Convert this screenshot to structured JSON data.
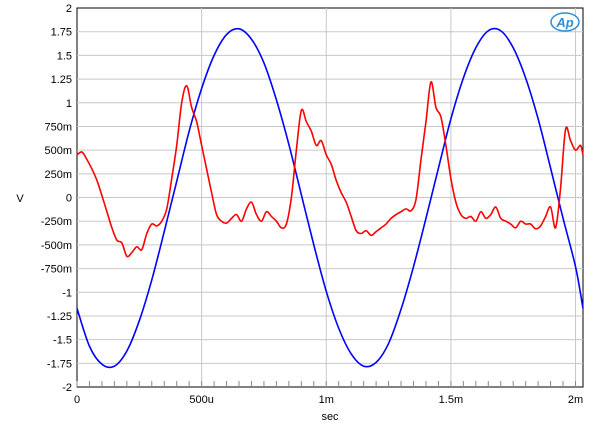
{
  "chart_data": {
    "type": "line",
    "xlabel": "sec",
    "ylabel": "V",
    "xlim": [
      0,
      0.00203
    ],
    "ylim": [
      -2,
      2
    ],
    "grid": true,
    "x_ticks": [
      {
        "value": 0,
        "label": "0"
      },
      {
        "value": 0.0005,
        "label": "500u"
      },
      {
        "value": 0.001,
        "label": "1m"
      },
      {
        "value": 0.0015,
        "label": "1.5m"
      },
      {
        "value": 0.002,
        "label": "2m"
      }
    ],
    "y_ticks": [
      {
        "value": 2,
        "label": "2"
      },
      {
        "value": 1.75,
        "label": "1.75"
      },
      {
        "value": 1.5,
        "label": "1.5"
      },
      {
        "value": 1.25,
        "label": "1.25"
      },
      {
        "value": 1,
        "label": "1"
      },
      {
        "value": 0.75,
        "label": "750m"
      },
      {
        "value": 0.5,
        "label": "500m"
      },
      {
        "value": 0.25,
        "label": "250m"
      },
      {
        "value": 0,
        "label": "0"
      },
      {
        "value": -0.25,
        "label": "-250m"
      },
      {
        "value": -0.5,
        "label": "-500m"
      },
      {
        "value": -0.75,
        "label": "-750m"
      },
      {
        "value": -1,
        "label": "-1"
      },
      {
        "value": -1.25,
        "label": "-1.25"
      },
      {
        "value": -1.5,
        "label": "-1.5"
      },
      {
        "value": -1.75,
        "label": "-1.75"
      },
      {
        "value": -2,
        "label": "-2"
      }
    ],
    "logo_text": "Ap",
    "series": [
      {
        "color": "#0000ff",
        "x": [
          0,
          5e-05,
          0.0001,
          0.00015,
          0.0002,
          0.00025,
          0.0003,
          0.00035,
          0.0004,
          0.00045,
          0.0005,
          0.00055,
          0.0006,
          0.00065,
          0.0007,
          0.00075,
          0.0008,
          0.00085,
          0.0009,
          0.00095,
          0.001,
          0.00105,
          0.0011,
          0.00115,
          0.0012,
          0.00125,
          0.0013,
          0.00135,
          0.0014,
          0.00145,
          0.0015,
          0.00155,
          0.0016,
          0.00165,
          0.0017,
          0.00175,
          0.0018,
          0.00185,
          0.0019,
          0.00195,
          0.002,
          0.00203
        ],
        "y": [
          -1.17,
          -1.57,
          -1.76,
          -1.78,
          -1.62,
          -1.3,
          -0.87,
          -0.36,
          0.17,
          0.7,
          1.15,
          1.5,
          1.72,
          1.78,
          1.67,
          1.42,
          1.03,
          0.56,
          0.03,
          -0.5,
          -0.99,
          -1.38,
          -1.65,
          -1.78,
          -1.74,
          -1.54,
          -1.18,
          -0.73,
          -0.22,
          0.31,
          0.83,
          1.26,
          1.58,
          1.76,
          1.76,
          1.58,
          1.26,
          0.83,
          0.31,
          -0.22,
          -0.73,
          -1.17
        ]
      },
      {
        "color": "#ff0000",
        "x": [
          0,
          2e-05,
          4e-05,
          6e-05,
          8e-05,
          0.0001,
          0.00012,
          0.00014,
          0.00016,
          0.00018,
          0.0002,
          0.00022,
          0.00024,
          0.00026,
          0.00028,
          0.0003,
          0.00032,
          0.00034,
          0.00036,
          0.00038,
          0.0004,
          0.00042,
          0.00044,
          0.00046,
          0.00048,
          0.0005,
          0.00052,
          0.00054,
          0.00056,
          0.00058,
          0.0006,
          0.00062,
          0.00064,
          0.00066,
          0.00068,
          0.0007,
          0.00072,
          0.00074,
          0.00076,
          0.00078,
          0.0008,
          0.00082,
          0.00084,
          0.00086,
          0.00088,
          0.0009,
          0.00092,
          0.00094,
          0.00096,
          0.00098,
          0.001,
          0.00102,
          0.00104,
          0.00106,
          0.00108,
          0.0011,
          0.00112,
          0.00114,
          0.00116,
          0.00118,
          0.0012,
          0.00122,
          0.00124,
          0.00126,
          0.00128,
          0.0013,
          0.00132,
          0.00134,
          0.00136,
          0.00138,
          0.0014,
          0.00142,
          0.00144,
          0.00146,
          0.00148,
          0.0015,
          0.00152,
          0.00154,
          0.00156,
          0.00158,
          0.0016,
          0.00162,
          0.00164,
          0.00166,
          0.00168,
          0.0017,
          0.00172,
          0.00174,
          0.00176,
          0.00178,
          0.0018,
          0.00182,
          0.00184,
          0.00186,
          0.00188,
          0.0019,
          0.00192,
          0.00194,
          0.00196,
          0.00198,
          0.002,
          0.00202,
          0.00203
        ],
        "y": [
          0.45,
          0.48,
          0.4,
          0.3,
          0.18,
          0.02,
          -0.15,
          -0.32,
          -0.45,
          -0.48,
          -0.62,
          -0.58,
          -0.52,
          -0.55,
          -0.38,
          -0.28,
          -0.3,
          -0.25,
          -0.12,
          0.2,
          0.55,
          1.0,
          1.18,
          0.95,
          0.8,
          0.55,
          0.3,
          0.05,
          -0.18,
          -0.25,
          -0.27,
          -0.22,
          -0.18,
          -0.25,
          -0.12,
          -0.05,
          -0.18,
          -0.25,
          -0.15,
          -0.2,
          -0.25,
          -0.32,
          -0.28,
          0.0,
          0.5,
          0.92,
          0.8,
          0.7,
          0.55,
          0.6,
          0.45,
          0.35,
          0.18,
          0.05,
          -0.05,
          -0.2,
          -0.35,
          -0.38,
          -0.35,
          -0.4,
          -0.36,
          -0.32,
          -0.28,
          -0.22,
          -0.18,
          -0.15,
          -0.12,
          -0.14,
          -0.02,
          0.4,
          0.8,
          1.22,
          0.95,
          0.85,
          0.55,
          0.2,
          -0.05,
          -0.18,
          -0.22,
          -0.2,
          -0.25,
          -0.15,
          -0.22,
          -0.18,
          -0.1,
          -0.22,
          -0.25,
          -0.28,
          -0.32,
          -0.25,
          -0.28,
          -0.28,
          -0.33,
          -0.3,
          -0.2,
          -0.1,
          -0.32,
          0.1,
          0.72,
          0.6,
          0.5,
          0.55,
          0.45
        ]
      }
    ]
  }
}
